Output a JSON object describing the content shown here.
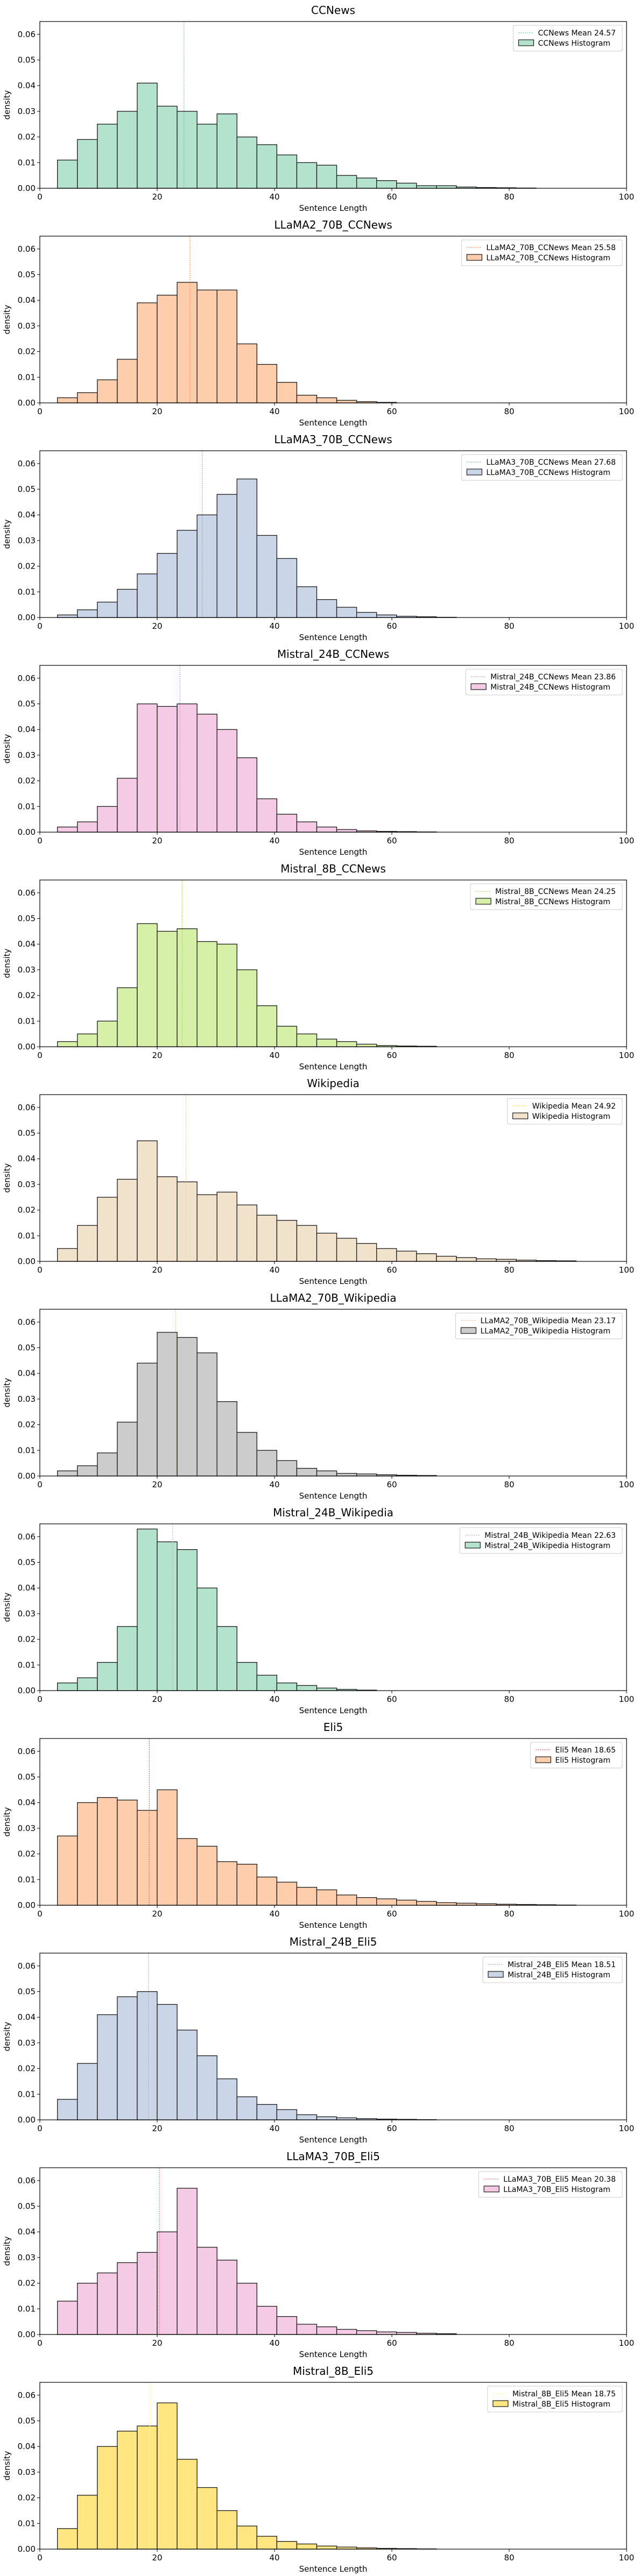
{
  "chart_data": [
    {
      "type": "bar",
      "title": "CCNews",
      "xlabel": "Sentence Length",
      "ylabel": "density",
      "xlim": [
        0,
        100
      ],
      "ylim": [
        0,
        0.065
      ],
      "xticks": [
        0,
        20,
        40,
        60,
        80,
        100
      ],
      "yticks": [
        0,
        0.01,
        0.02,
        0.03,
        0.04,
        0.05,
        0.06
      ],
      "bin_width": 3.4,
      "bin_start": 3,
      "values": [
        0.011,
        0.019,
        0.025,
        0.03,
        0.041,
        0.032,
        0.03,
        0.025,
        0.029,
        0.02,
        0.017,
        0.013,
        0.01,
        0.009,
        0.005,
        0.004,
        0.003,
        0.002,
        0.001,
        0.001,
        0.0005,
        0.0003,
        0.0002,
        0.0001
      ],
      "mean": 24.57,
      "mean_color": "#66c2a5",
      "fill_color": "#b3e2cd",
      "legend": [
        "CCNews Mean 24.57",
        "CCNews Histogram"
      ],
      "legend_position": "upper right"
    },
    {
      "type": "bar",
      "title": "LLaMA2_70B_CCNews",
      "xlabel": "Sentence Length",
      "ylabel": "density",
      "xlim": [
        0,
        100
      ],
      "ylim": [
        0,
        0.065
      ],
      "xticks": [
        0,
        20,
        40,
        60,
        80,
        100
      ],
      "yticks": [
        0,
        0.01,
        0.02,
        0.03,
        0.04,
        0.05,
        0.06
      ],
      "bin_width": 3.4,
      "bin_start": 3,
      "values": [
        0.002,
        0.004,
        0.009,
        0.017,
        0.039,
        0.042,
        0.047,
        0.044,
        0.044,
        0.023,
        0.015,
        0.008,
        0.003,
        0.002,
        0.001,
        0.0005,
        0.0002
      ],
      "mean": 25.58,
      "mean_color": "#fc8d62",
      "fill_color": "#fdcdac",
      "legend": [
        "LLaMA2_70B_CCNews Mean 25.58",
        "LLaMA2_70B_CCNews Histogram"
      ],
      "legend_position": "upper right"
    },
    {
      "type": "bar",
      "title": "LLaMA3_70B_CCNews",
      "xlabel": "Sentence Length",
      "ylabel": "density",
      "xlim": [
        0,
        100
      ],
      "ylim": [
        0,
        0.065
      ],
      "xticks": [
        0,
        20,
        40,
        60,
        80,
        100
      ],
      "yticks": [
        0,
        0.01,
        0.02,
        0.03,
        0.04,
        0.05,
        0.06
      ],
      "bin_width": 3.4,
      "bin_start": 3,
      "values": [
        0.001,
        0.003,
        0.006,
        0.011,
        0.017,
        0.025,
        0.034,
        0.04,
        0.048,
        0.054,
        0.032,
        0.023,
        0.012,
        0.007,
        0.004,
        0.002,
        0.001,
        0.0005,
        0.0003,
        0.0001
      ],
      "mean": 27.68,
      "mean_color": "#8da0cb",
      "fill_color": "#cbd5e8",
      "legend": [
        "LLaMA3_70B_CCNews Mean 27.68",
        "LLaMA3_70B_CCNews Histogram"
      ],
      "legend_position": "upper right"
    },
    {
      "type": "bar",
      "title": "Mistral_24B_CCNews",
      "xlabel": "Sentence Length",
      "ylabel": "density",
      "xlim": [
        0,
        100
      ],
      "ylim": [
        0,
        0.065
      ],
      "xticks": [
        0,
        20,
        40,
        60,
        80,
        100
      ],
      "yticks": [
        0,
        0.01,
        0.02,
        0.03,
        0.04,
        0.05,
        0.06
      ],
      "bin_width": 3.4,
      "bin_start": 3,
      "values": [
        0.002,
        0.004,
        0.01,
        0.021,
        0.05,
        0.049,
        0.05,
        0.046,
        0.04,
        0.029,
        0.013,
        0.007,
        0.004,
        0.002,
        0.001,
        0.0005,
        0.0003,
        0.0002,
        0.0001
      ],
      "mean": 23.86,
      "mean_color": "#e78ac3",
      "fill_color": "#f4cae4",
      "legend": [
        "Mistral_24B_CCNews Mean 23.86",
        "Mistral_24B_CCNews Histogram"
      ],
      "legend_position": "upper right"
    },
    {
      "type": "bar",
      "title": "Mistral_8B_CCNews",
      "xlabel": "Sentence Length",
      "ylabel": "density",
      "xlim": [
        0,
        100
      ],
      "ylim": [
        0,
        0.065
      ],
      "xticks": [
        0,
        20,
        40,
        60,
        80,
        100
      ],
      "yticks": [
        0,
        0.01,
        0.02,
        0.03,
        0.04,
        0.05,
        0.06
      ],
      "bin_width": 3.4,
      "bin_start": 3,
      "values": [
        0.002,
        0.005,
        0.01,
        0.023,
        0.048,
        0.045,
        0.046,
        0.041,
        0.04,
        0.03,
        0.016,
        0.008,
        0.005,
        0.003,
        0.002,
        0.001,
        0.0005,
        0.0003,
        0.0002
      ],
      "mean": 24.25,
      "mean_color": "#a6d854",
      "fill_color": "#d6f0a8",
      "legend": [
        "Mistral_8B_CCNews Mean 24.25",
        "Mistral_8B_CCNews Histogram"
      ],
      "legend_position": "upper right"
    },
    {
      "type": "bar",
      "title": "Wikipedia",
      "xlabel": "Sentence Length",
      "ylabel": "density",
      "xlim": [
        0,
        100
      ],
      "ylim": [
        0,
        0.065
      ],
      "xticks": [
        0,
        20,
        40,
        60,
        80,
        100
      ],
      "yticks": [
        0,
        0.01,
        0.02,
        0.03,
        0.04,
        0.05,
        0.06
      ],
      "bin_width": 3.4,
      "bin_start": 3,
      "values": [
        0.005,
        0.014,
        0.025,
        0.032,
        0.047,
        0.033,
        0.031,
        0.026,
        0.027,
        0.022,
        0.018,
        0.016,
        0.014,
        0.011,
        0.009,
        0.007,
        0.005,
        0.004,
        0.003,
        0.002,
        0.0015,
        0.001,
        0.0008,
        0.0005,
        0.0003,
        0.0002
      ],
      "mean": 24.92,
      "mean_color": "#ffd92f",
      "fill_color": "#f1e2cc",
      "legend": [
        "Wikipedia Mean 24.92",
        "Wikipedia Histogram"
      ],
      "legend_position": "upper right"
    },
    {
      "type": "bar",
      "title": "LLaMA2_70B_Wikipedia",
      "xlabel": "Sentence Length",
      "ylabel": "density",
      "xlim": [
        0,
        100
      ],
      "ylim": [
        0,
        0.065
      ],
      "xticks": [
        0,
        20,
        40,
        60,
        80,
        100
      ],
      "yticks": [
        0,
        0.01,
        0.02,
        0.03,
        0.04,
        0.05,
        0.06
      ],
      "bin_width": 3.4,
      "bin_start": 3,
      "values": [
        0.002,
        0.004,
        0.009,
        0.021,
        0.044,
        0.056,
        0.054,
        0.048,
        0.029,
        0.017,
        0.01,
        0.006,
        0.003,
        0.002,
        0.001,
        0.0008,
        0.0005,
        0.0003,
        0.0002
      ],
      "mean": 23.17,
      "mean_color": "#e5c494",
      "fill_color": "#cccccc",
      "legend": [
        "LLaMA2_70B_Wikipedia Mean 23.17",
        "LLaMA2_70B_Wikipedia Histogram"
      ],
      "legend_position": "upper right"
    },
    {
      "type": "bar",
      "title": "Mistral_24B_Wikipedia",
      "xlabel": "Sentence Length",
      "ylabel": "density",
      "xlim": [
        0,
        100
      ],
      "ylim": [
        0,
        0.065
      ],
      "xticks": [
        0,
        20,
        40,
        60,
        80,
        100
      ],
      "yticks": [
        0,
        0.01,
        0.02,
        0.03,
        0.04,
        0.05,
        0.06
      ],
      "bin_width": 3.4,
      "bin_start": 3,
      "values": [
        0.003,
        0.005,
        0.011,
        0.025,
        0.063,
        0.058,
        0.055,
        0.04,
        0.025,
        0.011,
        0.006,
        0.003,
        0.002,
        0.001,
        0.0005,
        0.0002
      ],
      "mean": 22.63,
      "mean_color": "#b3b3b3",
      "fill_color": "#b3e2cd",
      "legend": [
        "Mistral_24B_Wikipedia Mean 22.63",
        "Mistral_24B_Wikipedia Histogram"
      ],
      "legend_position": "upper right"
    },
    {
      "type": "bar",
      "title": "Eli5",
      "xlabel": "Sentence Length",
      "ylabel": "density",
      "xlim": [
        0,
        100
      ],
      "ylim": [
        0,
        0.065
      ],
      "xticks": [
        0,
        20,
        40,
        60,
        80,
        100
      ],
      "yticks": [
        0,
        0.01,
        0.02,
        0.03,
        0.04,
        0.05,
        0.06
      ],
      "bin_width": 3.4,
      "bin_start": 3,
      "values": [
        0.027,
        0.04,
        0.042,
        0.041,
        0.037,
        0.045,
        0.026,
        0.023,
        0.017,
        0.016,
        0.011,
        0.009,
        0.007,
        0.006,
        0.004,
        0.003,
        0.0025,
        0.002,
        0.0015,
        0.001,
        0.0008,
        0.0006,
        0.0004,
        0.0003,
        0.0002,
        0.0001
      ],
      "mean": 18.65,
      "mean_color": "#ff4d4d",
      "fill_color": "#fdcdac",
      "legend": [
        "Eli5 Mean 18.65",
        "Eli5 Histogram"
      ],
      "legend_position": "upper right"
    },
    {
      "type": "bar",
      "title": "Mistral_24B_Eli5",
      "xlabel": "Sentence Length",
      "ylabel": "density",
      "xlim": [
        0,
        100
      ],
      "ylim": [
        0,
        0.065
      ],
      "xticks": [
        0,
        20,
        40,
        60,
        80,
        100
      ],
      "yticks": [
        0,
        0.01,
        0.02,
        0.03,
        0.04,
        0.05,
        0.06
      ],
      "bin_width": 3.4,
      "bin_start": 3,
      "values": [
        0.008,
        0.022,
        0.041,
        0.048,
        0.05,
        0.045,
        0.035,
        0.025,
        0.016,
        0.009,
        0.006,
        0.004,
        0.002,
        0.0012,
        0.0008,
        0.0005,
        0.0003,
        0.0002,
        0.0001
      ],
      "mean": 18.51,
      "mean_color": "#e78ac3",
      "fill_color": "#cbd5e8",
      "legend": [
        "Mistral_24B_Eli5 Mean 18.51",
        "Mistral_24B_Eli5 Histogram"
      ],
      "legend_position": "upper right"
    },
    {
      "type": "bar",
      "title": "LLaMA3_70B_Eli5",
      "xlabel": "Sentence Length",
      "ylabel": "density",
      "xlim": [
        0,
        100
      ],
      "ylim": [
        0,
        0.065
      ],
      "xticks": [
        0,
        20,
        40,
        60,
        80,
        100
      ],
      "yticks": [
        0,
        0.01,
        0.02,
        0.03,
        0.04,
        0.05,
        0.06
      ],
      "bin_width": 3.4,
      "bin_start": 3,
      "values": [
        0.013,
        0.02,
        0.024,
        0.028,
        0.032,
        0.04,
        0.057,
        0.034,
        0.029,
        0.02,
        0.011,
        0.007,
        0.004,
        0.003,
        0.002,
        0.0015,
        0.001,
        0.0008,
        0.0005,
        0.0003
      ],
      "mean": 20.38,
      "mean_color": "#ff6b8a",
      "fill_color": "#f4cae4",
      "legend": [
        "LLaMA3_70B_Eli5 Mean 20.38",
        "LLaMA3_70B_Eli5 Histogram"
      ],
      "legend_position": "upper right"
    },
    {
      "type": "bar",
      "title": "Mistral_8B_Eli5",
      "xlabel": "Sentence Length",
      "ylabel": "density",
      "xlim": [
        0,
        100
      ],
      "ylim": [
        0,
        0.065
      ],
      "xticks": [
        0,
        20,
        40,
        60,
        80,
        100
      ],
      "yticks": [
        0,
        0.01,
        0.02,
        0.03,
        0.04,
        0.05,
        0.06
      ],
      "bin_width": 3.4,
      "bin_start": 3,
      "values": [
        0.008,
        0.021,
        0.04,
        0.046,
        0.048,
        0.057,
        0.035,
        0.024,
        0.015,
        0.009,
        0.005,
        0.003,
        0.002,
        0.0012,
        0.0008,
        0.0005,
        0.0003,
        0.0002,
        0.0001
      ],
      "mean": 18.75,
      "mean_color": "#fff5a0",
      "fill_color": "#ffe680",
      "legend": [
        "Mistral_8B_Eli5 Mean 18.75",
        "Mistral_8B_Eli5 Histogram"
      ],
      "legend_position": "upper right"
    }
  ]
}
